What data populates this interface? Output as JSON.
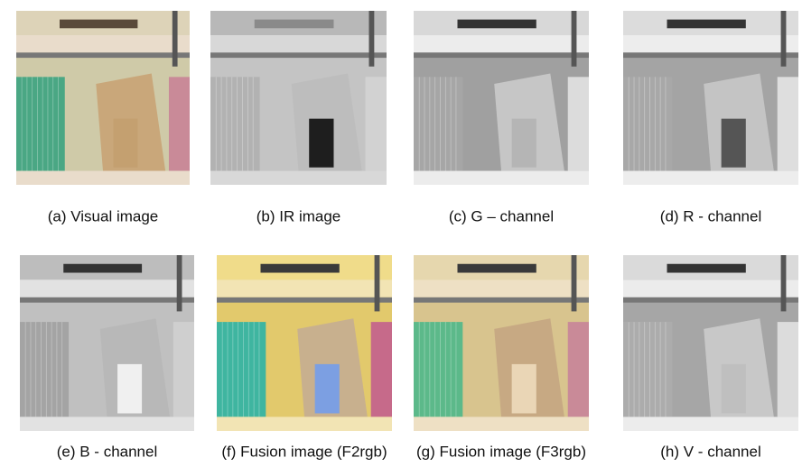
{
  "figure": {
    "panels": [
      {
        "caption": "(a) Visual image"
      },
      {
        "caption": "(b) IR image"
      },
      {
        "caption": "(c) G – channel"
      },
      {
        "caption": "(d) R - channel"
      },
      {
        "caption": "(e) B - channel"
      },
      {
        "caption": "(f) Fusion image (F2rgb)"
      },
      {
        "caption": "(g) Fusion image (F3rgb)"
      },
      {
        "caption": "(h) V - channel"
      }
    ]
  }
}
